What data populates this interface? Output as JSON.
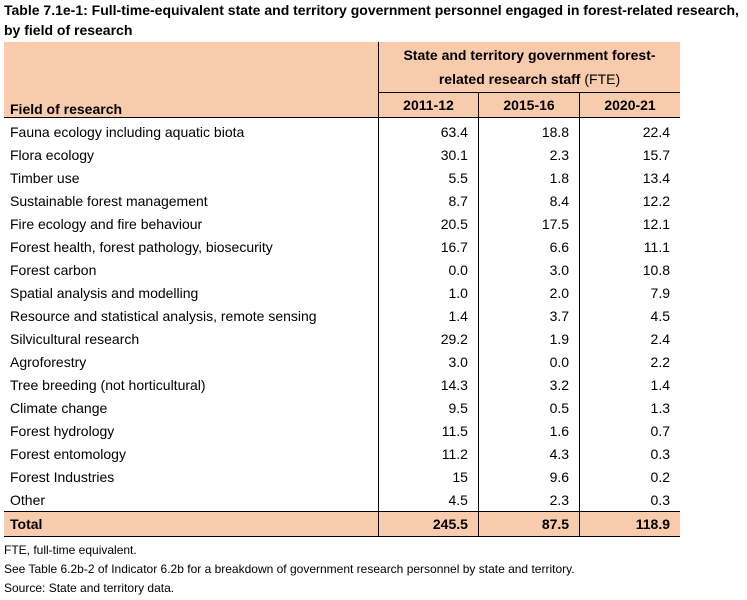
{
  "title": "Table 7.1e-1: Full-time-equivalent state and territory government personnel engaged in forest-related research, by field of research",
  "table": {
    "group_header": {
      "text": "State and territory government forest-related research staff",
      "unit": "(FTE)"
    },
    "columns": [
      "Field of research",
      "2011-12",
      "2015-16",
      "2020-21"
    ],
    "rows": [
      [
        "Fauna ecology including aquatic biota",
        "63.4",
        "18.8",
        "22.4"
      ],
      [
        "Flora ecology",
        "30.1",
        "2.3",
        "15.7"
      ],
      [
        "Timber use",
        "5.5",
        "1.8",
        "13.4"
      ],
      [
        "Sustainable forest management",
        "8.7",
        "8.4",
        "12.2"
      ],
      [
        "Fire ecology and fire behaviour",
        "20.5",
        "17.5",
        "12.1"
      ],
      [
        "Forest health, forest pathology, biosecurity",
        "16.7",
        "6.6",
        "11.1"
      ],
      [
        "Forest carbon",
        "0.0",
        "3.0",
        "10.8"
      ],
      [
        "Spatial analysis and modelling",
        "1.0",
        "2.0",
        "7.9"
      ],
      [
        "Resource and statistical analysis, remote sensing",
        "1.4",
        "3.7",
        "4.5"
      ],
      [
        "Silvicultural research",
        "29.2",
        "1.9",
        "2.4"
      ],
      [
        "Agroforestry",
        "3.0",
        "0.0",
        "2.2"
      ],
      [
        "Tree breeding (not horticultural)",
        "14.3",
        "3.2",
        "1.4"
      ],
      [
        "Climate change",
        "9.5",
        "0.5",
        "1.3"
      ],
      [
        "Forest hydrology",
        "11.5",
        "1.6",
        "0.7"
      ],
      [
        "Forest entomology",
        "11.2",
        "4.3",
        "0.3"
      ],
      [
        "Forest Industries",
        "15",
        "9.6",
        "0.2"
      ],
      [
        "Other",
        "4.5",
        "2.3",
        "0.3"
      ]
    ],
    "total": [
      "Total",
      "245.5",
      "87.5",
      "118.9"
    ]
  },
  "notes": [
    "FTE, full-time equivalent.",
    "See Table 6.2b-2 of Indicator 6.2b for a breakdown of government research personnel by state and territory.",
    "Source: State and territory data."
  ]
}
